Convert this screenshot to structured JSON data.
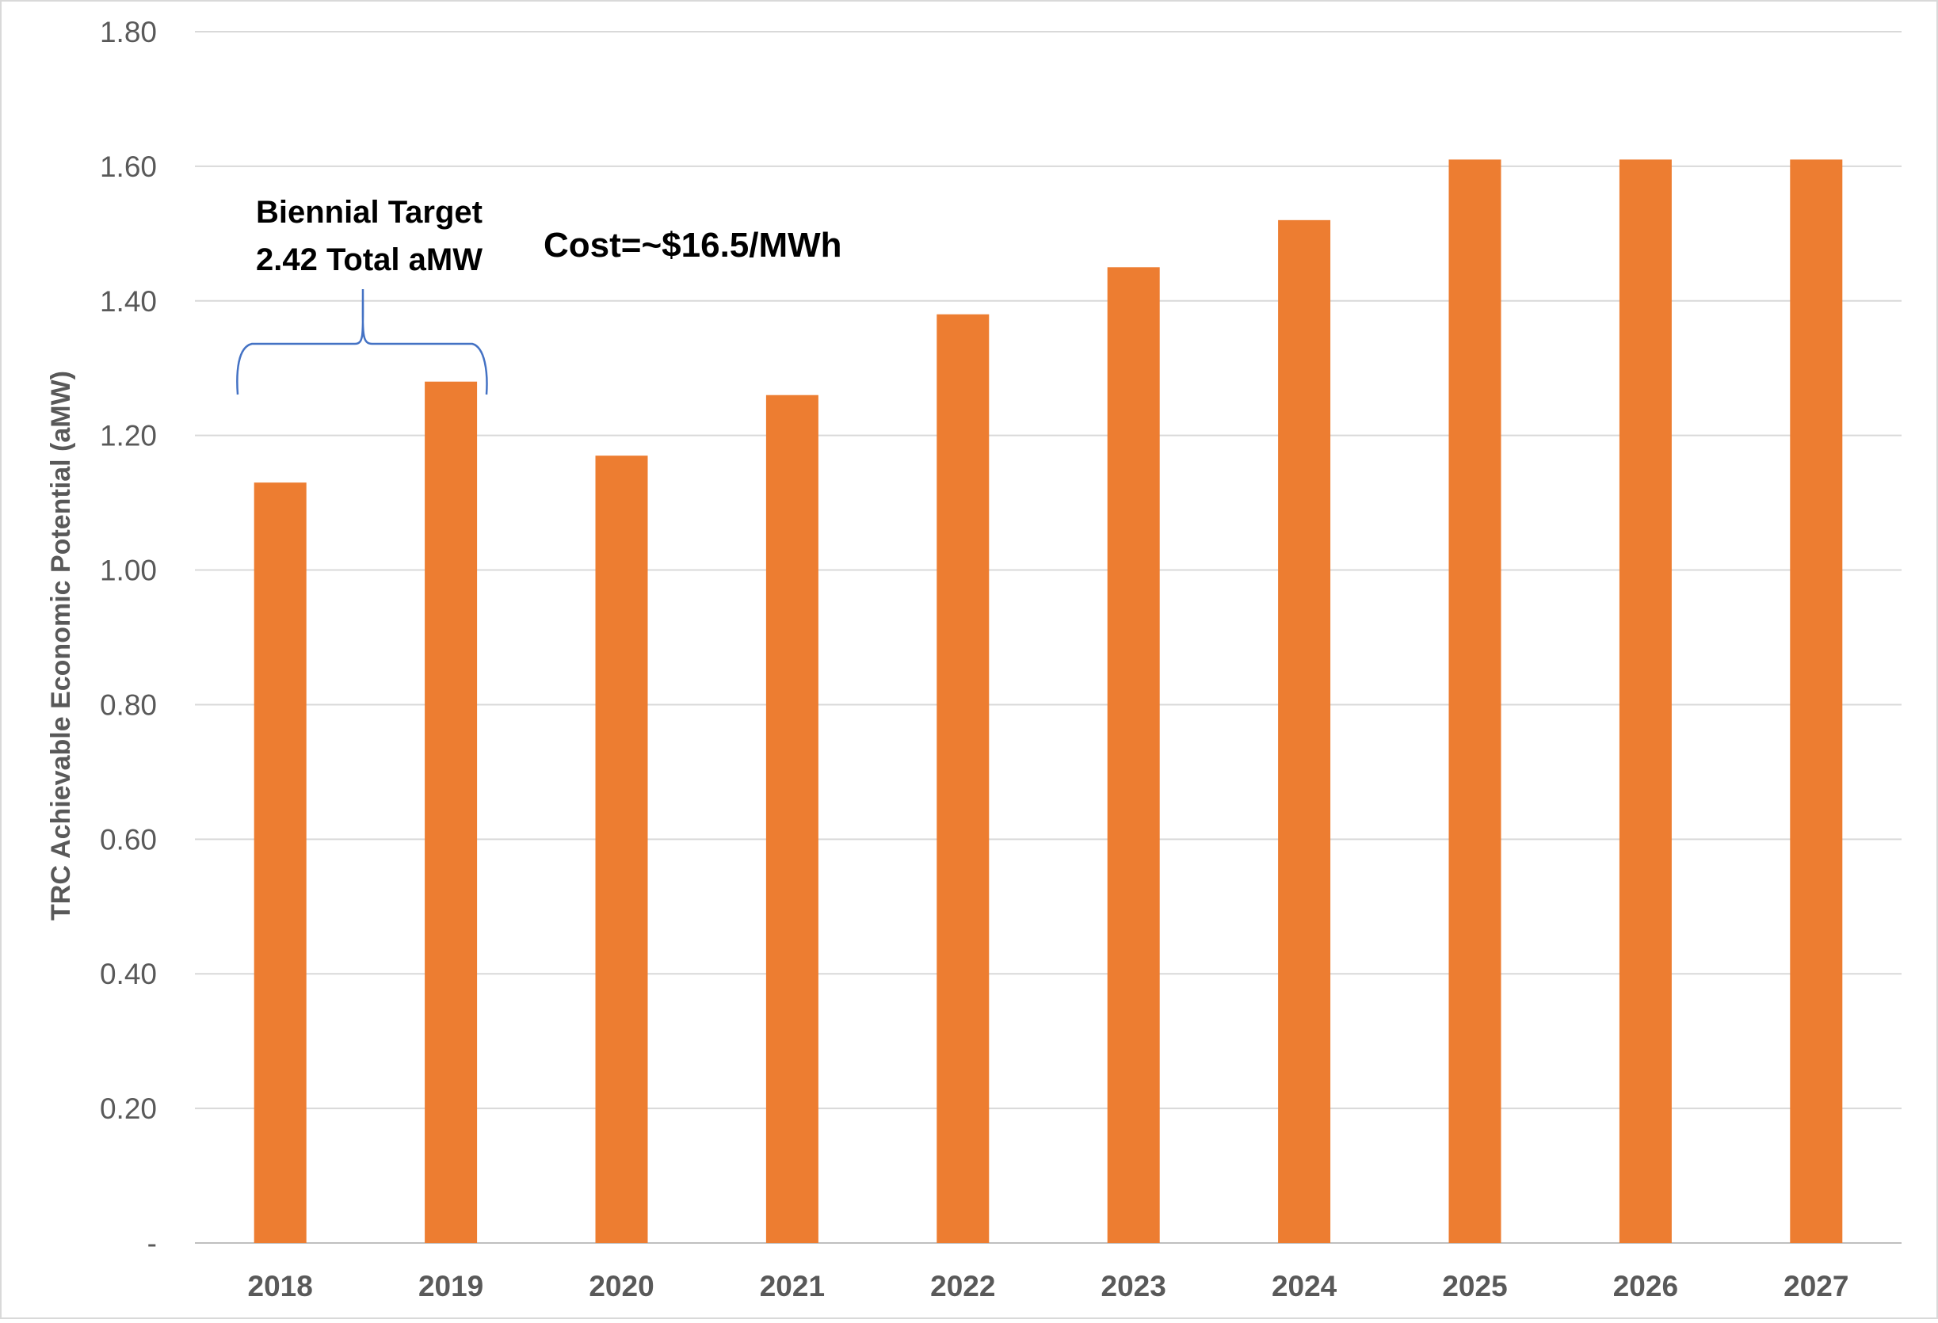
{
  "chart_data": {
    "type": "bar",
    "title": "",
    "xlabel": "",
    "ylabel": "TRC Achievable Economic Potential (aMW)",
    "categories": [
      "2018",
      "2019",
      "2020",
      "2021",
      "2022",
      "2023",
      "2024",
      "2025",
      "2026",
      "2027"
    ],
    "values": [
      1.13,
      1.28,
      1.17,
      1.26,
      1.38,
      1.45,
      1.52,
      1.61,
      1.61,
      1.61
    ],
    "ylim": [
      0,
      1.8
    ],
    "yticks": [
      {
        "value": 0,
        "label": "-"
      },
      {
        "value": 0.2,
        "label": "0.20"
      },
      {
        "value": 0.4,
        "label": "0.40"
      },
      {
        "value": 0.6,
        "label": "0.60"
      },
      {
        "value": 0.8,
        "label": "0.80"
      },
      {
        "value": 1.0,
        "label": "1.00"
      },
      {
        "value": 1.2,
        "label": "1.20"
      },
      {
        "value": 1.4,
        "label": "1.40"
      },
      {
        "value": 1.6,
        "label": "1.60"
      },
      {
        "value": 1.8,
        "label": "1.80"
      }
    ],
    "grid": true,
    "legend": "none",
    "colors": {
      "bar": "#ED7D31",
      "grid": "#D9D9D9",
      "tick_text": "#595959",
      "annotation_text": "#000000",
      "brace": "#4472C4"
    },
    "annotations": {
      "biennial_line1": "Biennial Target",
      "biennial_line2": "2.42 Total aMW",
      "cost": "Cost=~$16.5/MWh"
    }
  }
}
